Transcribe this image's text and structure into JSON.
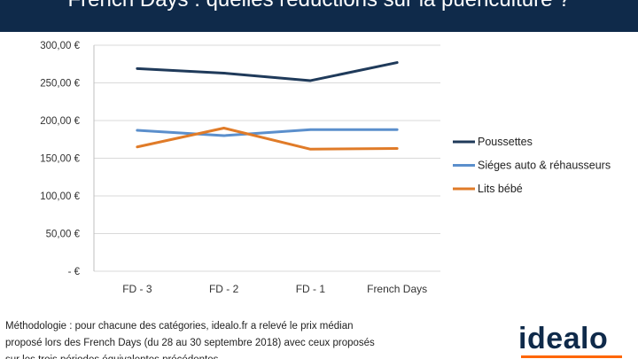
{
  "header": {
    "title": "French Days : quelles réductions sur la puériculture ?"
  },
  "colors": {
    "header_bg": "#0f2a4a",
    "series": [
      "#1f3a5a",
      "#5b8fcc",
      "#e07b28"
    ],
    "logo": "#0f2a4a",
    "logo_accent": "#ff6600"
  },
  "chart_data": {
    "type": "line",
    "categories": [
      "FD - 3",
      "FD - 2",
      "FD - 1",
      "French Days"
    ],
    "y_ticks": [
      "-   €",
      "50,00   €",
      "100,00   €",
      "150,00   €",
      "200,00   €",
      "250,00   €",
      "300,00   €"
    ],
    "ylim": [
      0,
      300
    ],
    "grid": true,
    "legend_position": "right",
    "series": [
      {
        "name": "Poussettes",
        "values": [
          269,
          263,
          253,
          277
        ]
      },
      {
        "name": "Siéges auto & réhausseurs",
        "values": [
          187,
          180,
          188,
          188
        ]
      },
      {
        "name": "Lits bébé",
        "values": [
          165,
          190,
          162,
          163
        ]
      }
    ]
  },
  "footer": {
    "methodology_lines": [
      "Méthodologie : pour chacune des catégories, idealo.fr a relevé le prix médian",
      "proposé lors des French Days (du 28 au 30 septembre 2018) avec ceux proposés",
      "sur les trois périodes équivalentes précédentes"
    ]
  },
  "logo": {
    "text": "idealo"
  }
}
